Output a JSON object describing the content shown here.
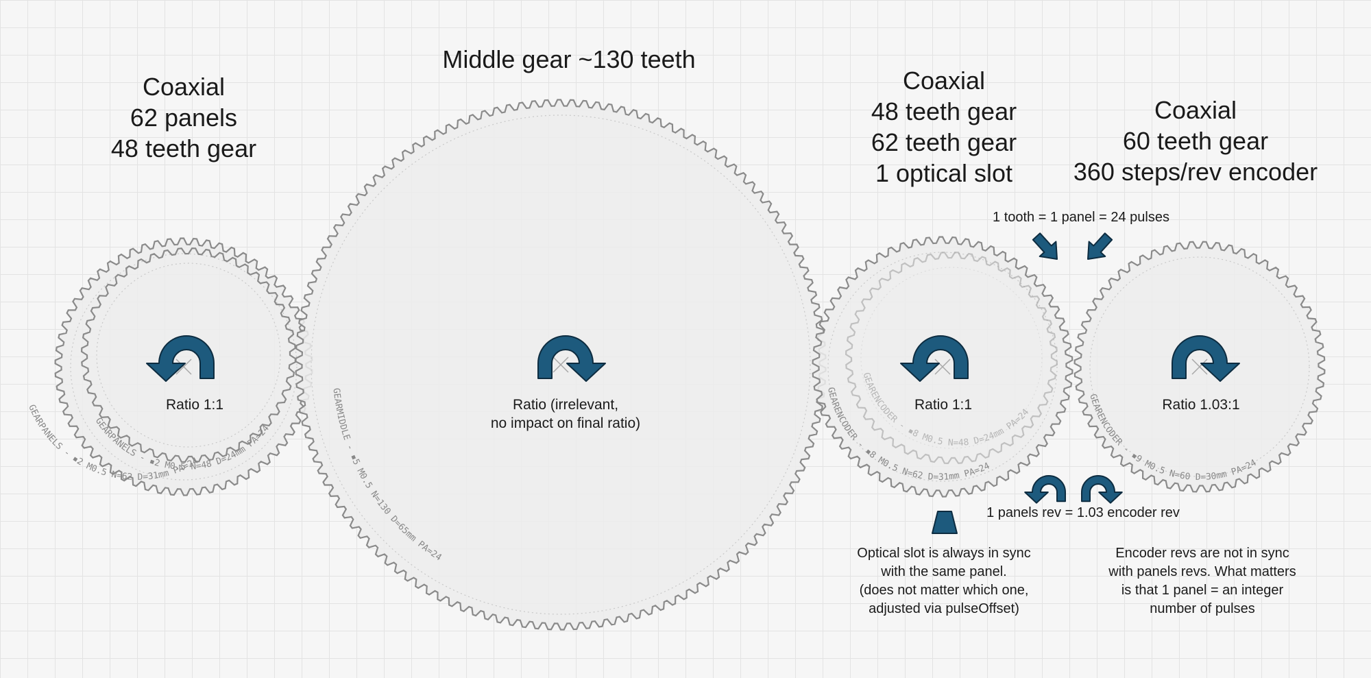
{
  "colors": {
    "arrow_fill": "#1d5a7d",
    "arrow_stroke": "#0d2c40",
    "gear_stroke": "#8a8a8a",
    "gear_fill": "#ececec"
  },
  "headings": {
    "left": [
      "Coaxial",
      "62 panels",
      "48 teeth gear"
    ],
    "middle": [
      "Middle gear ~130 teeth"
    ],
    "right_center": [
      "Coaxial",
      "48 teeth gear",
      "62 teeth gear",
      "1 optical slot"
    ],
    "far_right": [
      "Coaxial",
      "60 teeth gear",
      "360 steps/rev encoder"
    ]
  },
  "ratios": {
    "left": "Ratio 1:1",
    "middle": [
      "Ratio (irrelevant,",
      "no impact on final ratio)"
    ],
    "right_center": "Ratio 1:1",
    "far_right": "Ratio 1.03:1"
  },
  "annotations": {
    "tooth_panel": "1 tooth = 1 panel = 24 pulses",
    "panels_rev": "1 panels rev = 1.03 encoder rev",
    "optical_note": [
      "Optical slot is always in sync",
      "with the same panel.",
      "(does not matter which one,",
      "adjusted via pulseOffset)"
    ],
    "encoder_note": [
      "Encoder revs are not in sync",
      "with panels revs. What matters",
      "is that 1 panel = an integer",
      "number of pulses"
    ]
  },
  "gear_labels": {
    "left_outer": "GEARPANELS - ▪2 M0.5 N=62 D=31mm PA=24",
    "left_inner": "GEARPANELS - ▪2 M0.5 N=48 D=24mm PA=24",
    "middle": "GEARMIDDLE - ▪5 M0.5 N=130 D=65mm PA=24",
    "right_outer": "GEARENCODER - ▪8 M0.5 N=62 D=31mm PA=24",
    "right_inner": "GEARENCODER - ▪8 M0.5 N=48 D=24mm PA=24",
    "encoder": "GEARENCODER - ▪9 M0.5 N=60 D=30mm PA=24"
  },
  "gears": [
    {
      "name": "left-outer-gear",
      "teeth": 62,
      "rotation": "counterclockwise"
    },
    {
      "name": "left-inner-gear",
      "teeth": 48
    },
    {
      "name": "middle-gear",
      "teeth": 130,
      "rotation": "clockwise"
    },
    {
      "name": "right-center-outer-gear",
      "teeth": 62,
      "rotation": "counterclockwise"
    },
    {
      "name": "right-center-inner-gear",
      "teeth": 48
    },
    {
      "name": "encoder-gear",
      "teeth": 60,
      "rotation": "clockwise"
    }
  ]
}
